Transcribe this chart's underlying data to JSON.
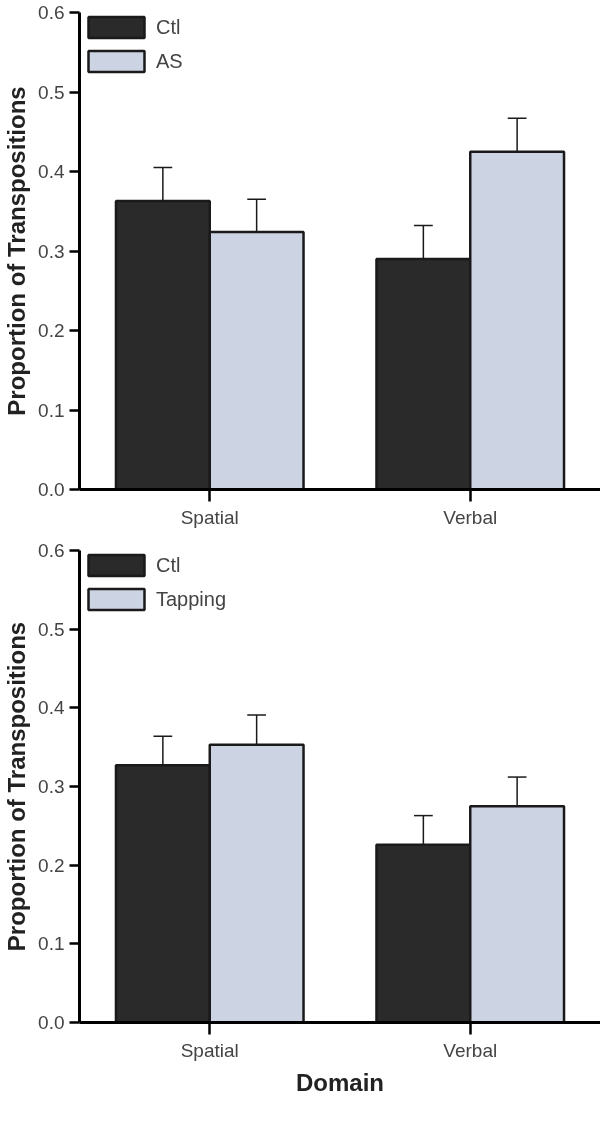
{
  "chart_data": [
    {
      "type": "bar",
      "ylabel": "Proportion of Transpositions",
      "categories": [
        "Spatial",
        "Verbal"
      ],
      "ylim": [
        0,
        0.6
      ],
      "yticks": [
        "0.0",
        0.1,
        0.2,
        0.3,
        0.4,
        0.5,
        0.6
      ],
      "grid": false,
      "legend": "top left",
      "series": [
        {
          "name": "Ctl",
          "color": "#2a2a2a",
          "values": [
            0.363,
            0.29
          ],
          "errors": [
            [
              0.363,
              0.405
            ],
            [
              0.29,
              0.332
            ]
          ]
        },
        {
          "name": "AS",
          "color": "#ccd3e3",
          "values": [
            0.324,
            0.425
          ],
          "errors": [
            [
              0.324,
              0.365
            ],
            [
              0.425,
              0.467
            ]
          ]
        }
      ]
    },
    {
      "type": "bar",
      "ylabel": "Proportion of Transpositions",
      "xlabel": "Domain",
      "categories": [
        "Spatial",
        "Verbal"
      ],
      "ylim": [
        0,
        0.6
      ],
      "yticks": [
        "0.0",
        0.1,
        0.2,
        0.3,
        0.4,
        0.5,
        0.6
      ],
      "grid": false,
      "legend": "top left",
      "series": [
        {
          "name": "Ctl",
          "color": "#2a2a2a",
          "values": [
            0.327,
            0.226
          ],
          "errors": [
            [
              0.327,
              0.364
            ],
            [
              0.226,
              0.263
            ]
          ]
        },
        {
          "name": "Tapping",
          "color": "#ccd3e3",
          "values": [
            0.353,
            0.275
          ],
          "errors": [
            [
              0.353,
              0.391
            ],
            [
              0.275,
              0.312
            ]
          ]
        }
      ]
    }
  ]
}
